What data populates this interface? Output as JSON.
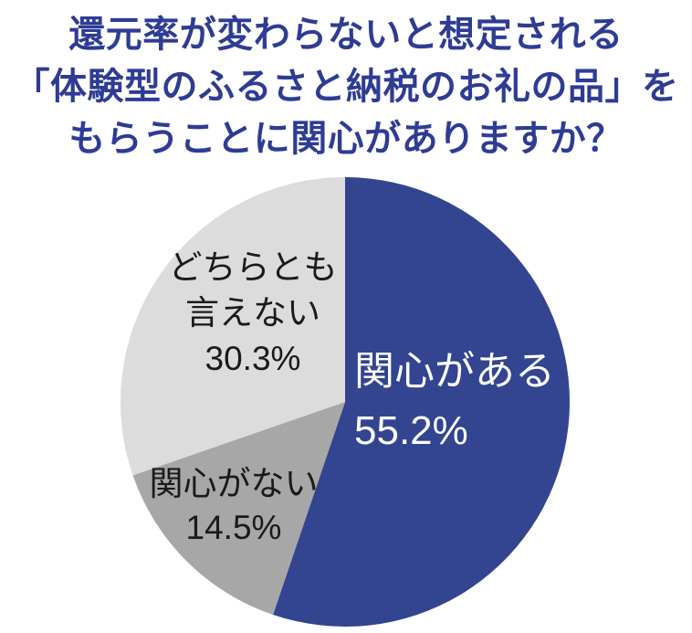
{
  "title": {
    "lines": [
      "還元率が変わらないと想定される",
      "「体験型のふるさと納税のお礼の品」を",
      "もらうことに関心がありますか？"
    ]
  },
  "chart_data": {
    "type": "pie",
    "title": "還元率が変わらないと想定される「体験型のふるさと納税のお礼の品」をもらうことに関心がありますか？",
    "start_angle_deg": 0,
    "direction": "clockwise",
    "legend": "none",
    "segments": [
      {
        "id": "interested",
        "label": "関心がある",
        "value": 55.2,
        "pct_label": "55.2%",
        "color": "#334590",
        "text_color": "#FFFFFF"
      },
      {
        "id": "not-interested",
        "label": "関心がない",
        "value": 14.5,
        "pct_label": "14.5%",
        "color": "#A7A7A7",
        "text_color": "#1A1A1A"
      },
      {
        "id": "neutral",
        "label": "どちらとも言えない",
        "value": 30.3,
        "pct_label": "30.3%",
        "color": "#DCDCDC",
        "text_color": "#1A1A1A"
      }
    ]
  },
  "colors": {
    "title_text": "#2E3C94",
    "background": "#FFFFFF"
  }
}
